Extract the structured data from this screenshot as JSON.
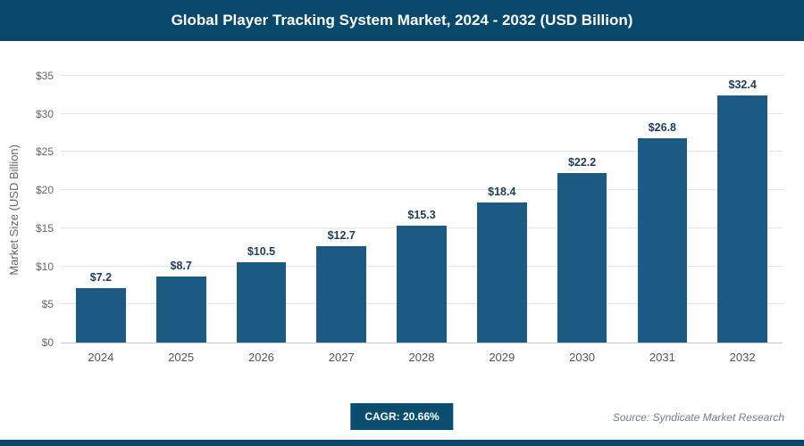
{
  "header": {
    "title": "Global Player Tracking System Market, 2024 - 2032 (USD Billion)"
  },
  "chart_data": {
    "type": "bar",
    "title": "Global Player Tracking System Market, 2024 - 2032 (USD Billion)",
    "categories": [
      "2024",
      "2025",
      "2026",
      "2027",
      "2028",
      "2029",
      "2030",
      "2031",
      "2032"
    ],
    "values": [
      7.2,
      8.7,
      10.5,
      12.7,
      15.3,
      18.4,
      22.2,
      26.8,
      32.4
    ],
    "data_labels": [
      "$7.2",
      "$8.7",
      "$10.5",
      "$12.7",
      "$15.3",
      "$18.4",
      "$22.2",
      "$26.8",
      "$32.4"
    ],
    "xlabel": "",
    "ylabel": "Market Size (USD Billion)",
    "ylim": [
      0,
      35
    ],
    "ytick_step": 5,
    "value_prefix": "$",
    "grid": true,
    "legend_position": "none",
    "bar_color": "#1b5a82"
  },
  "footer": {
    "cagr_label": "CAGR: 20.66%",
    "source": "Source: Syndicate Market Research"
  },
  "colors": {
    "header_bg": "#07486b",
    "bar": "#1b5a82",
    "badge_bg": "#0b4d6e",
    "gridline": "#e5e5e5"
  }
}
